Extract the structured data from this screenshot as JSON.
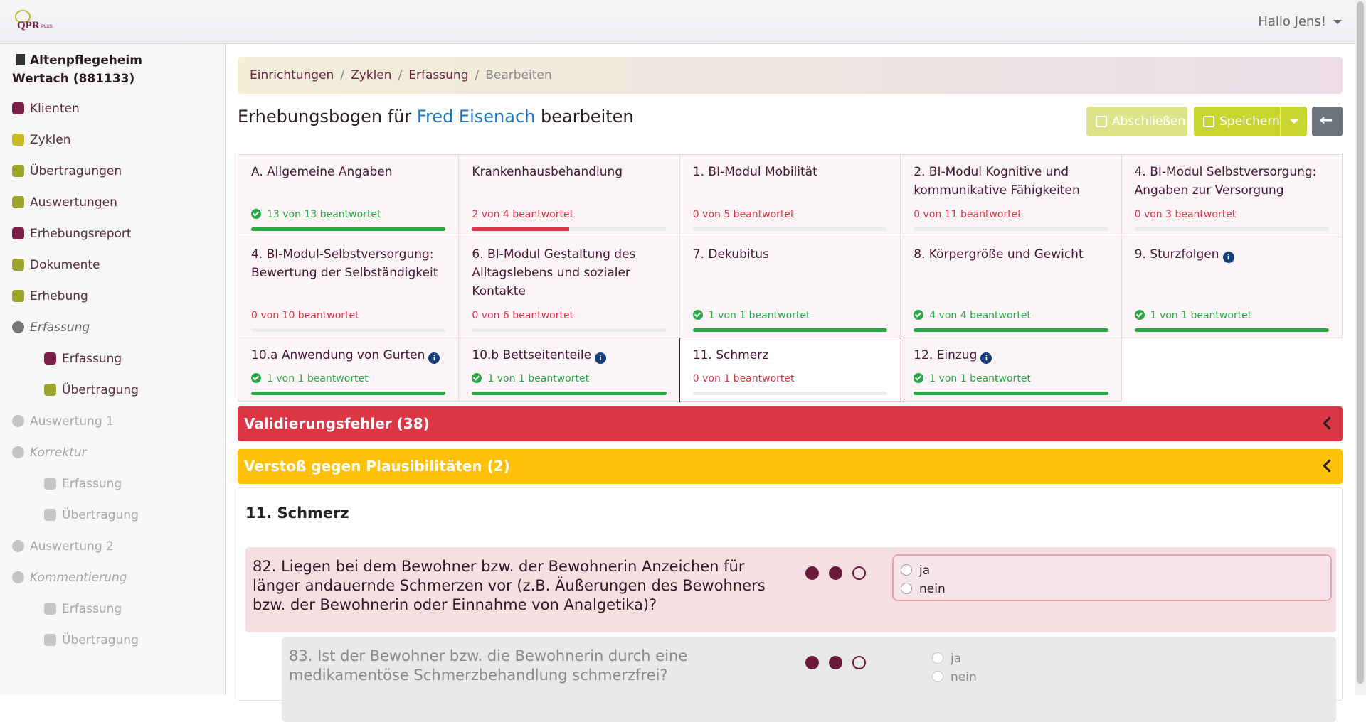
{
  "header": {
    "logo_main": "QPR",
    "logo_small": "PLUS",
    "greeting": "Hallo Jens!"
  },
  "sidebar": {
    "facility": "Altenpflegeheim Wertach (881133)",
    "items": [
      {
        "label": "Klienten",
        "level": 1,
        "style": "normal",
        "icon_color": "#7a1f4a"
      },
      {
        "label": "Zyklen",
        "level": 1,
        "style": "normal",
        "icon_color": "#c9b81e"
      },
      {
        "label": "Übertragungen",
        "level": 1,
        "style": "normal",
        "icon_color": "#9aa52a"
      },
      {
        "label": "Auswertungen",
        "level": 1,
        "style": "normal",
        "icon_color": "#9aa52a"
      },
      {
        "label": "Erhebungsreport",
        "level": 1,
        "style": "normal",
        "icon_color": "#7a1f4a"
      },
      {
        "label": "Dokumente",
        "level": 1,
        "style": "normal",
        "icon_color": "#9aa52a"
      },
      {
        "label": "Erhebung",
        "level": 1,
        "style": "normal",
        "icon_color": "#9aa52a"
      },
      {
        "label": "Erfassung",
        "level": 1,
        "style": "italic",
        "icon_color": "#777777"
      },
      {
        "label": "Erfassung",
        "level": 2,
        "style": "normal",
        "icon_color": "#7a1f4a"
      },
      {
        "label": "Übertragung",
        "level": 2,
        "style": "normal",
        "icon_color": "#9aa52a"
      },
      {
        "label": "Auswertung 1",
        "level": 1,
        "style": "disabled",
        "icon_color": "#c4c4c4"
      },
      {
        "label": "Korrektur",
        "level": 1,
        "style": "disabled-italic",
        "icon_color": "#c4c4c4"
      },
      {
        "label": "Erfassung",
        "level": 2,
        "style": "disabled",
        "icon_color": "#c4c4c4"
      },
      {
        "label": "Übertragung",
        "level": 2,
        "style": "disabled",
        "icon_color": "#c4c4c4"
      },
      {
        "label": "Auswertung 2",
        "level": 1,
        "style": "disabled",
        "icon_color": "#c4c4c4"
      },
      {
        "label": "Kommentierung",
        "level": 1,
        "style": "disabled-italic",
        "icon_color": "#c4c4c4"
      },
      {
        "label": "Erfassung",
        "level": 2,
        "style": "disabled",
        "icon_color": "#c4c4c4"
      },
      {
        "label": "Übertragung",
        "level": 2,
        "style": "disabled",
        "icon_color": "#c4c4c4"
      }
    ]
  },
  "breadcrumb": [
    "Einrichtungen",
    "Zyklen",
    "Erfassung",
    "Bearbeiten"
  ],
  "title": {
    "before": "Erhebungsbogen für",
    "name": "Fred Eisenach",
    "after": "bearbeiten"
  },
  "buttons": {
    "finish": "Abschließen",
    "save": "Speichern"
  },
  "modules": [
    {
      "title": "A. Allgemeine Angaben",
      "status": "13 von 13 beantwortet"
    },
    {
      "title": "Krankenhausbehandlung",
      "status": "2 von 4 beantwortet"
    },
    {
      "title": "1. BI-Modul Mobilität",
      "status": "0 von 5 beantwortet"
    },
    {
      "title": "2. BI-Modul Kognitive und kommunikative Fähigkeiten",
      "status": "0 von 11 beantwortet"
    },
    {
      "title": "4. BI-Modul Selbstversorgung: Angaben zur Versorgung",
      "status": "0 von 3 beantwortet"
    },
    {
      "title": "4. BI-Modul-Selbstversorgung: Bewertung der Selbständigkeit",
      "status": "0 von 10 beantwortet"
    },
    {
      "title": "6. BI-Modul Gestaltung des Alltagslebens und sozialer Kontakte",
      "status": "0 von 6 beantwortet"
    },
    {
      "title": "7. Dekubitus",
      "status": "1 von 1 beantwortet"
    },
    {
      "title": "8. Körpergröße und Gewicht",
      "status": "4 von 4 beantwortet"
    },
    {
      "title": "9. Sturzfolgen",
      "status": "1 von 1 beantwortet",
      "info": true
    },
    {
      "title": "10.a Anwendung von Gurten",
      "status": "1 von 1 beantwortet",
      "info": true
    },
    {
      "title": "10.b Bettseitenteile",
      "status": "1 von 1 beantwortet",
      "info": true
    },
    {
      "title": "11. Schmerz",
      "status": "0 von 1 beantwortet",
      "selected": true
    },
    {
      "title": "12. Einzug",
      "status": "1 von 1 beantwortet",
      "info": true
    }
  ],
  "alerts": [
    {
      "text": "Validierungsfehler (38)",
      "color": "#dc3545"
    },
    {
      "text": "Verstoß gegen Plausibilitäten (2)",
      "color": "#ffc107"
    }
  ],
  "section": {
    "title": "11. Schmerz",
    "questions": [
      {
        "text": "82. Liegen bei dem Bewohner bzw. der Bewohnerin Anzeichen für länger andauernde Schmerzen vor (z.B. Äußerungen des Bewohners bzw. der Bewohnerin oder Einnahme von Analgetika)?",
        "options": [
          "ja",
          "nein"
        ],
        "state": "error"
      },
      {
        "text": "83. Ist der Bewohner bzw. die Bewohnerin durch eine medikamentöse Schmerzbehandlung schmerzfrei?",
        "options": [
          "ja",
          "nein"
        ],
        "state": "disabled"
      }
    ]
  }
}
